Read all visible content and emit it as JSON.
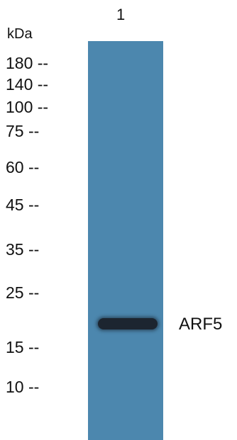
{
  "lane_label": "1",
  "unit_label": "kDa",
  "markers": [
    "180 --",
    "140 --",
    "100 --",
    "75 --",
    "60 --",
    "45 --",
    "35 --",
    "25 --",
    "15 --",
    "10 --"
  ],
  "band_label": "ARF5",
  "colors": {
    "lane": "#4c87ae",
    "band": "#1c2530"
  }
}
